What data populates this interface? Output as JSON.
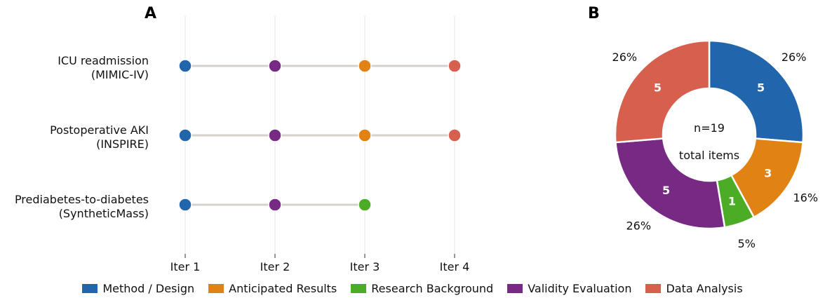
{
  "chart_data": [
    {
      "type": "scatter",
      "panel": "A",
      "x_ticks": [
        "Iter 1",
        "Iter 2",
        "Iter 3",
        "Iter 4"
      ],
      "rows": [
        {
          "label_line1": "ICU readmission",
          "label_line2": "(MIMIC-IV)",
          "points": [
            {
              "x": "Iter 1",
              "category": "Method / Design"
            },
            {
              "x": "Iter 2",
              "category": "Validity Evaluation"
            },
            {
              "x": "Iter 3",
              "category": "Anticipated Results"
            },
            {
              "x": "Iter 4",
              "category": "Data Analysis"
            }
          ]
        },
        {
          "label_line1": "Postoperative AKI",
          "label_line2": "(INSPIRE)",
          "points": [
            {
              "x": "Iter 1",
              "category": "Method / Design"
            },
            {
              "x": "Iter 2",
              "category": "Validity Evaluation"
            },
            {
              "x": "Iter 3",
              "category": "Anticipated Results"
            },
            {
              "x": "Iter 4",
              "category": "Data Analysis"
            }
          ]
        },
        {
          "label_line1": "Prediabetes-to-diabetes",
          "label_line2": "(SyntheticMass)",
          "points": [
            {
              "x": "Iter 1",
              "category": "Method / Design"
            },
            {
              "x": "Iter 2",
              "category": "Validity Evaluation"
            },
            {
              "x": "Iter 3",
              "category": "Research Background"
            }
          ]
        }
      ],
      "grid": "vertical"
    },
    {
      "type": "pie",
      "panel": "B",
      "donut": true,
      "center_text": [
        "n=19",
        "total items"
      ],
      "slices": [
        {
          "category": "Method / Design",
          "value": 5,
          "percent_label": "26%"
        },
        {
          "category": "Anticipated Results",
          "value": 3,
          "percent_label": "16%"
        },
        {
          "category": "Research Background",
          "value": 1,
          "percent_label": "5%"
        },
        {
          "category": "Validity Evaluation",
          "value": 5,
          "percent_label": "26%"
        },
        {
          "category": "Data Analysis",
          "value": 5,
          "percent_label": "26%"
        }
      ]
    }
  ],
  "legend": [
    {
      "label": "Method / Design",
      "color": "#2166ac"
    },
    {
      "label": "Anticipated Results",
      "color": "#e08214"
    },
    {
      "label": "Research Background",
      "color": "#4dac26"
    },
    {
      "label": "Validity Evaluation",
      "color": "#762a83"
    },
    {
      "label": "Data Analysis",
      "color": "#d6604d"
    }
  ]
}
